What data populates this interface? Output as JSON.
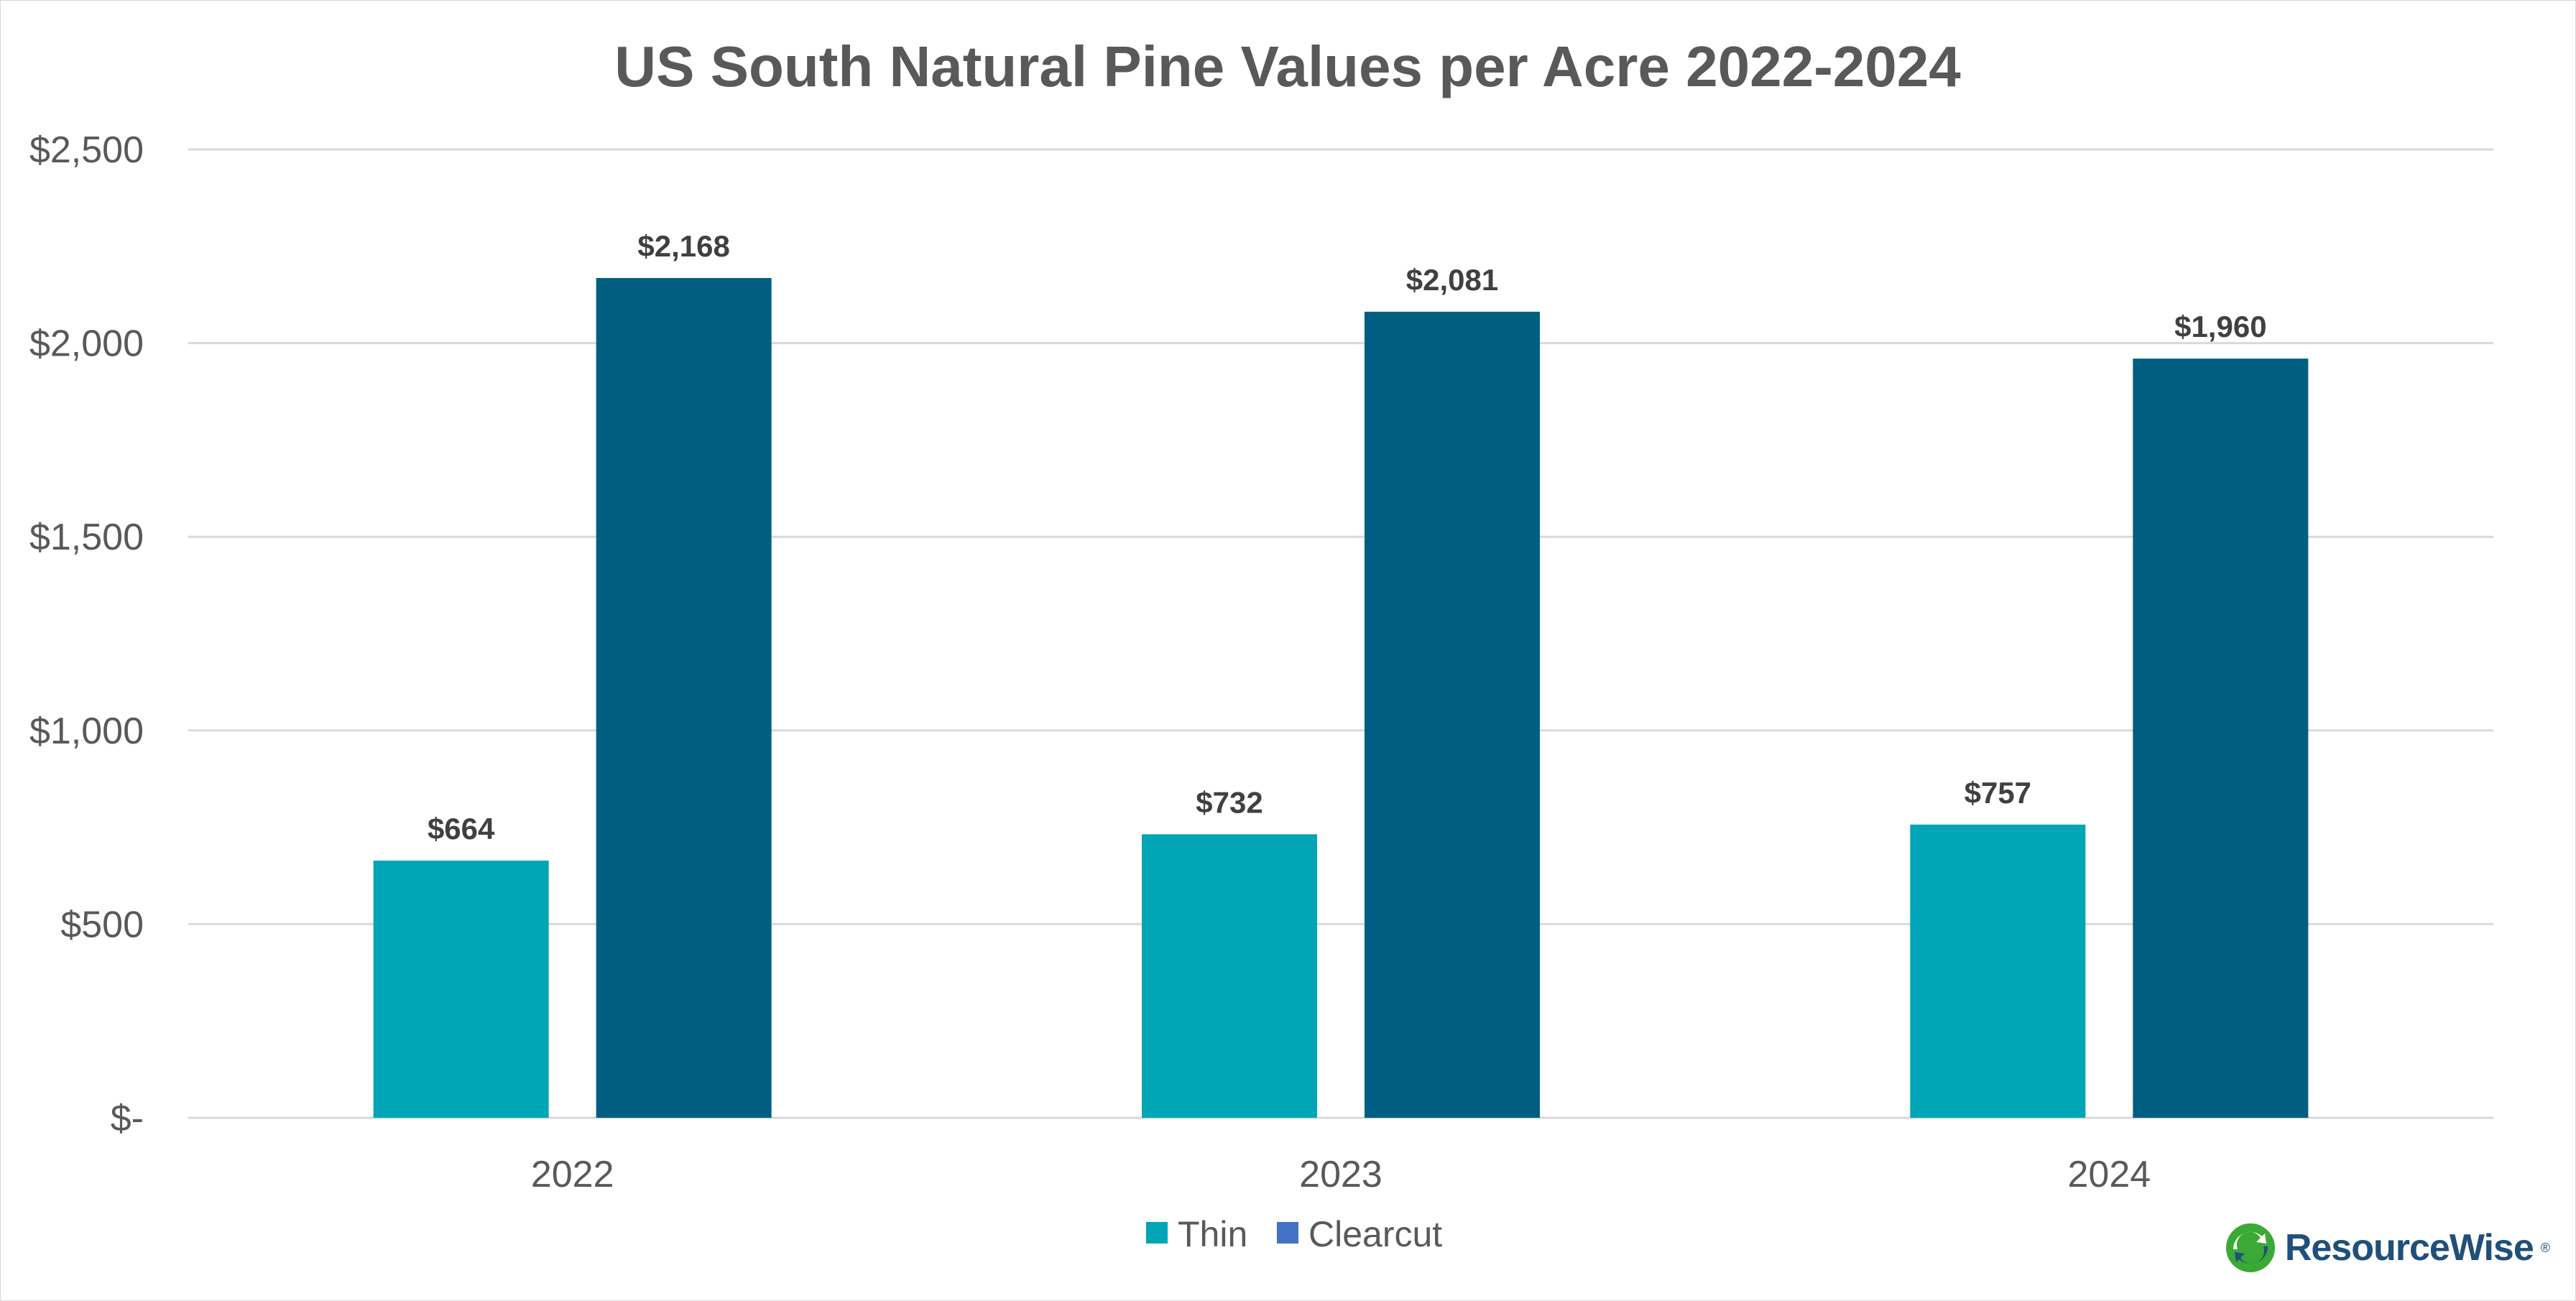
{
  "colors": {
    "thin": "#00a6b6",
    "clearcut": "#005f80",
    "clearcut_legend": "#4472c4",
    "grid": "#d9d9d9",
    "text": "#595959",
    "label": "#404040",
    "logo_green": "#3aa935",
    "logo_blue": "#1f4f7a"
  },
  "chart_data": {
    "type": "bar",
    "title": "US South Natural Pine Values per Acre 2022-2024",
    "xlabel": "",
    "ylabel": "",
    "categories": [
      "2022",
      "2023",
      "2024"
    ],
    "series": [
      {
        "name": "Thin",
        "values": [
          664,
          732,
          757
        ],
        "labels": [
          "$664",
          "$732",
          "$757"
        ]
      },
      {
        "name": "Clearcut",
        "values": [
          2168,
          2081,
          1960
        ],
        "labels": [
          "$2,168",
          "$2,081",
          "$1,960"
        ]
      }
    ],
    "ylim": [
      0,
      2500
    ],
    "yticks": [
      0,
      500,
      1000,
      1500,
      2000,
      2500
    ],
    "ytick_labels": [
      "$-",
      "$500",
      "$1,000",
      "$1,500",
      "$2,000",
      "$2,500"
    ],
    "grid": true,
    "legend_position": "bottom"
  },
  "logo": {
    "text": "ResourceWise",
    "mark": "®",
    "icon": "recycle-leaf-icon"
  }
}
